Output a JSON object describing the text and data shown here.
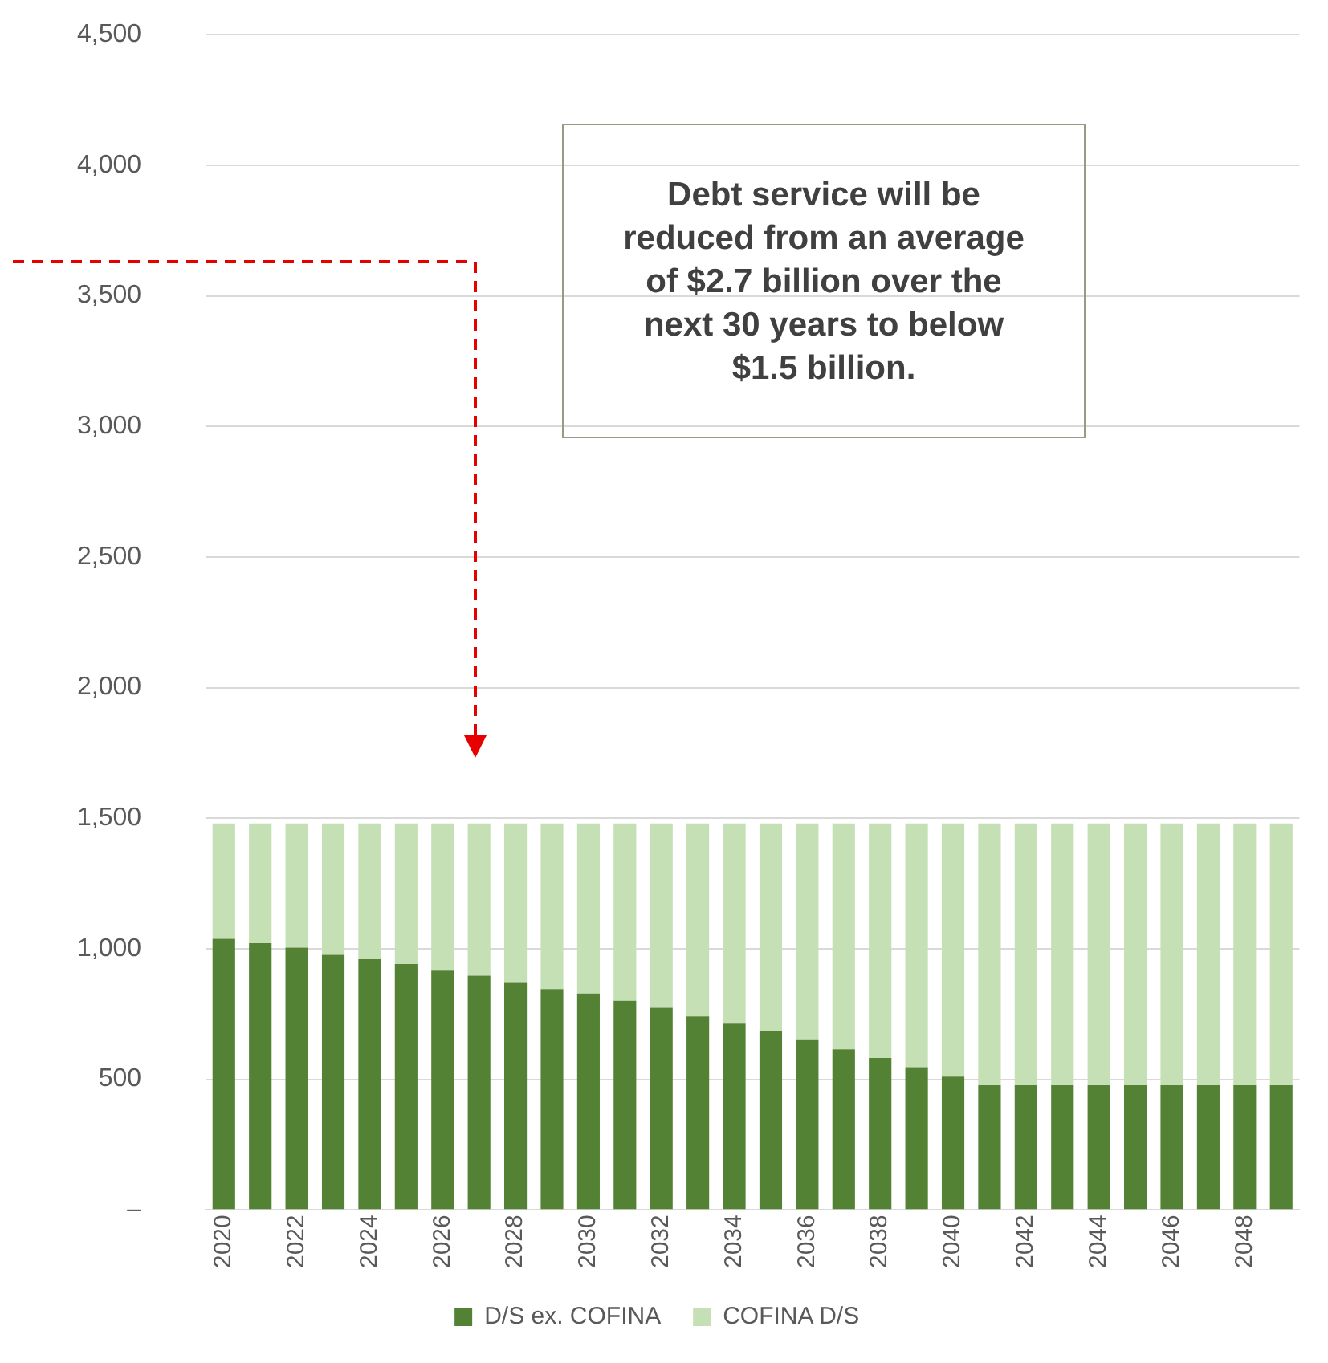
{
  "chart_data": {
    "type": "bar",
    "stacked": true,
    "categories": [
      "2020",
      null,
      "2022",
      null,
      "2024",
      null,
      "2026",
      null,
      "2028",
      null,
      "2030",
      null,
      "2032",
      null,
      "2034",
      null,
      "2036",
      null,
      "2038",
      null,
      "2040",
      null,
      "2042",
      null,
      "2044",
      null,
      "2046",
      null,
      "2048",
      null
    ],
    "series": [
      {
        "name": "D/S ex. COFINA",
        "color": "#548235",
        "values": [
          1038,
          1021,
          1004,
          977,
          960,
          941,
          916,
          897,
          872,
          845,
          828,
          801,
          774,
          741,
          713,
          686,
          653,
          615,
          582,
          546,
          510,
          477,
          477,
          477,
          477,
          477,
          477,
          477,
          477,
          477
        ]
      },
      {
        "name": "COFINA D/S",
        "color": "#c5e0b4",
        "values": [
          442,
          459,
          476,
          503,
          520,
          539,
          564,
          583,
          608,
          635,
          652,
          679,
          706,
          739,
          767,
          794,
          827,
          865,
          898,
          934,
          970,
          1003,
          1003,
          1003,
          1003,
          1003,
          1003,
          1003,
          1003,
          1003
        ]
      }
    ],
    "ylim": [
      0,
      4500
    ],
    "yticks": [
      {
        "value": 0,
        "label": "–"
      },
      {
        "value": 500,
        "label": "500"
      },
      {
        "value": 1000,
        "label": "1,000"
      },
      {
        "value": 1500,
        "label": "1,500"
      },
      {
        "value": 2000,
        "label": "2,000"
      },
      {
        "value": 2500,
        "label": "2,500"
      },
      {
        "value": 3000,
        "label": "3,000"
      },
      {
        "value": 3500,
        "label": "3,500"
      },
      {
        "value": 4000,
        "label": "4,000"
      },
      {
        "value": 4500,
        "label": "4,500"
      }
    ],
    "grid": "y",
    "legend": "bottom",
    "annotations": [
      "Debt service will be reduced from an average of $2.7 billion over the next 30 years to below $1.5 billion."
    ]
  }
}
